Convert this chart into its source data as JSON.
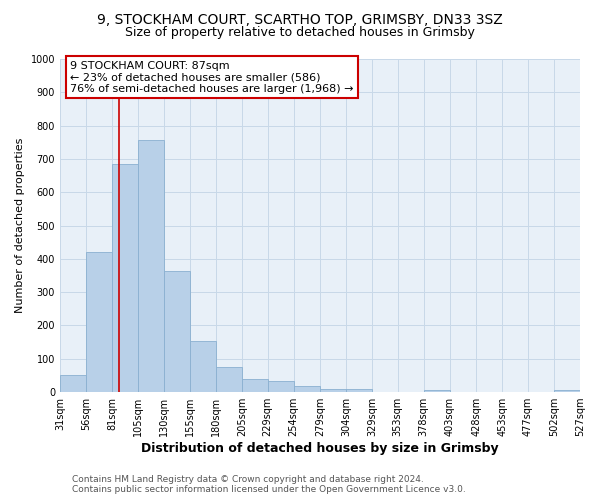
{
  "title1": "9, STOCKHAM COURT, SCARTHO TOP, GRIMSBY, DN33 3SZ",
  "title2": "Size of property relative to detached houses in Grimsby",
  "xlabel": "Distribution of detached houses by size in Grimsby",
  "ylabel": "Number of detached properties",
  "bar_left_edges": [
    31,
    56,
    81,
    105,
    130,
    155,
    180,
    205,
    229,
    254,
    279,
    304,
    329,
    353,
    378,
    403,
    428,
    453,
    477,
    502
  ],
  "bar_heights": [
    52,
    422,
    686,
    757,
    363,
    152,
    75,
    40,
    33,
    18,
    10,
    10,
    0,
    0,
    7,
    0,
    0,
    0,
    0,
    7
  ],
  "bar_widths": [
    25,
    25,
    24,
    25,
    25,
    25,
    25,
    24,
    25,
    25,
    25,
    25,
    24,
    25,
    25,
    25,
    25,
    24,
    25,
    25
  ],
  "bar_color": "#b8d0e8",
  "bar_edgecolor": "#8ab0d0",
  "x_tick_labels": [
    "31sqm",
    "56sqm",
    "81sqm",
    "105sqm",
    "130sqm",
    "155sqm",
    "180sqm",
    "205sqm",
    "229sqm",
    "254sqm",
    "279sqm",
    "304sqm",
    "329sqm",
    "353sqm",
    "378sqm",
    "403sqm",
    "428sqm",
    "453sqm",
    "477sqm",
    "502sqm",
    "527sqm"
  ],
  "ylim": [
    0,
    1000
  ],
  "yticks": [
    0,
    100,
    200,
    300,
    400,
    500,
    600,
    700,
    800,
    900,
    1000
  ],
  "property_size": 87,
  "red_line_color": "#cc0000",
  "annotation_line1": "9 STOCKHAM COURT: 87sqm",
  "annotation_line2": "← 23% of detached houses are smaller (586)",
  "annotation_line3": "76% of semi-detached houses are larger (1,968) →",
  "annotation_box_facecolor": "#ffffff",
  "annotation_box_edgecolor": "#cc0000",
  "grid_color": "#c8d8e8",
  "background_color": "#e8f0f8",
  "footer_text1": "Contains HM Land Registry data © Crown copyright and database right 2024.",
  "footer_text2": "Contains public sector information licensed under the Open Government Licence v3.0.",
  "title1_fontsize": 10,
  "title2_fontsize": 9,
  "xlabel_fontsize": 9,
  "ylabel_fontsize": 8,
  "tick_fontsize": 7,
  "annotation_fontsize": 8,
  "footer_fontsize": 6.5
}
